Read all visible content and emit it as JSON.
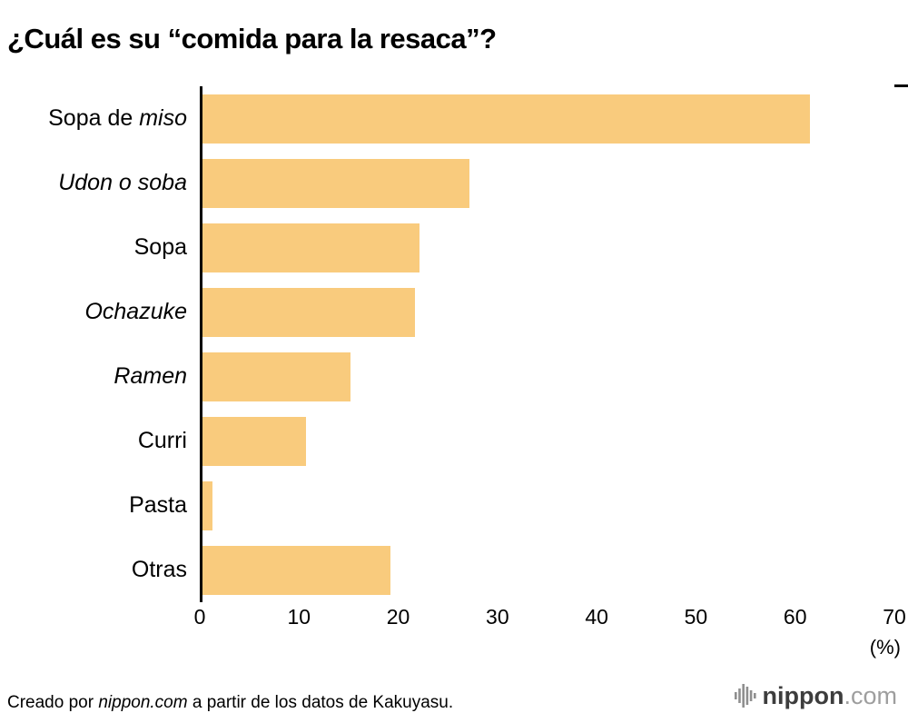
{
  "title": "¿Cuál es su “comida para la resaca”?",
  "chart_data": {
    "type": "bar",
    "orientation": "horizontal",
    "title": "¿Cuál es su “comida para la resaca”?",
    "categories": [
      "Sopa de miso",
      "Udon o soba",
      "Sopa",
      "Ochazuke",
      "Ramen",
      "Curri",
      "Pasta",
      "Otras"
    ],
    "category_segments": [
      [
        {
          "text": "Sopa de ",
          "italic": false
        },
        {
          "text": "miso",
          "italic": true
        }
      ],
      [
        {
          "text": "Udon o soba",
          "italic": true
        }
      ],
      [
        {
          "text": "Sopa",
          "italic": false
        }
      ],
      [
        {
          "text": "Ochazuke",
          "italic": true
        }
      ],
      [
        {
          "text": "Ramen",
          "italic": true
        }
      ],
      [
        {
          "text": "Curri",
          "italic": false
        }
      ],
      [
        {
          "text": "Pasta",
          "italic": false
        }
      ],
      [
        {
          "text": "Otras",
          "italic": false
        }
      ]
    ],
    "values": [
      61.5,
      27,
      22,
      21.5,
      15,
      10.5,
      1,
      19
    ],
    "xlim": [
      0,
      70
    ],
    "xticks": [
      0,
      10,
      20,
      30,
      40,
      50,
      60,
      70
    ],
    "unit_label": "(%)",
    "bar_color": "#F9CB7D",
    "axis_color": "#000000",
    "grid": false,
    "legend": "none"
  },
  "footer": {
    "credit_segments": [
      {
        "text": "Creado por ",
        "italic": false
      },
      {
        "text": "nippon.com",
        "italic": true
      },
      {
        "text": " a partir de los datos de Kakuyasu.",
        "italic": false
      }
    ],
    "logo": {
      "name": "nippon",
      "suffix": ".com"
    }
  }
}
